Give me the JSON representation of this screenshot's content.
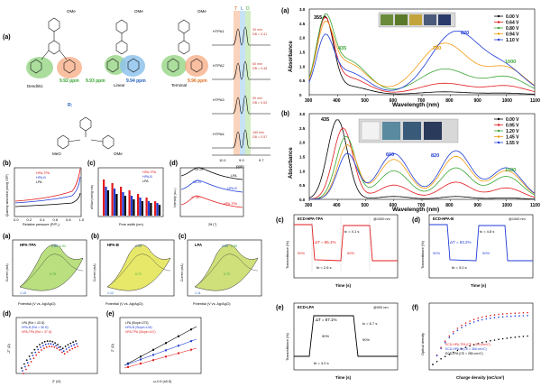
{
  "left": {
    "a_top": {
      "panel": "(a)",
      "ome": "OMe",
      "groups": [
        "Dendritic",
        "Linear",
        "Terminal"
      ],
      "ppm": [
        "9.92 ppm",
        "9.93 ppm",
        "9.94 ppm",
        "9.96 ppm"
      ],
      "r_label": "R:",
      "meo": "MeO",
      "nmr_header": [
        "T",
        "L",
        "D"
      ],
      "nmr_rows": [
        {
          "name": "HTPA1",
          "info": [
            "30 min",
            "DB = 0.41"
          ]
        },
        {
          "name": "HTPA2",
          "info": [
            "60 min",
            "DB = 0.48"
          ]
        },
        {
          "name": "HTPA3",
          "info": [
            "90 min",
            "DB = 0.53"
          ]
        },
        {
          "name": "HTPA4",
          "info": [
            "180 min",
            "DB = 0.57"
          ]
        }
      ],
      "nmr_ticks": [
        "10.1",
        "9.9",
        "9.7"
      ],
      "nmr_xlabel": "ppm"
    },
    "b": {
      "panel": "(b)",
      "legend": [
        "HPA-TPA",
        "HPA-B",
        "LPA"
      ],
      "xlabel": "Relative pressure (P/P₀)",
      "ylabel": "Quantity adsorbed (cm³/g STP)",
      "ticks": [
        "0.0",
        "0.2",
        "0.4",
        "0.6",
        "0.8",
        "1.0"
      ]
    },
    "c": {
      "panel": "(c)",
      "legend": [
        "HPA-TPA",
        "HPA-B",
        "LPA"
      ],
      "xlabel": "Pore width (nm)",
      "ylabel": "dV/dw (cm³/g·nm)"
    },
    "d": {
      "panel": "(d)",
      "labels": [
        "LPA",
        "HPA-B",
        "HPA-TPA"
      ],
      "xlabel": "2θ (°)",
      "ylabel": "Intensity (a.u.)",
      "peaks": [
        "19.19°",
        "18.25°",
        "17.06°"
      ]
    },
    "cv": [
      {
        "panel": "(a)",
        "title": "HPA-TPA",
        "vals": [
          "0.80",
          "0.92",
          "0.73",
          "1.15"
        ],
        "xlabel": "Potential (V vs. Ag/AgCl)"
      },
      {
        "panel": "(b)",
        "title": "HPA-B",
        "vals": [
          "0.90",
          "0.71",
          "1.12"
        ],
        "xlabel": "Potential (V vs. Ag/AgCl)"
      },
      {
        "panel": "(c)",
        "title": "LPA",
        "vals": [
          "0.81",
          "0.95",
          "0.72",
          "1.11"
        ],
        "xlabel": "Potential (V vs. Ag/AgCl)"
      }
    ],
    "cv_ylabel": "Current (mA)",
    "dd": {
      "panel": "(d)",
      "legend": [
        "LPA (Rct = 43 Ω)",
        "HPA-B (Rct = 36 Ω)",
        "HPA-TPA (Rct = 37 Ω)"
      ],
      "xlabel": "Z' (Ω)",
      "ylabel": "-Z'' (Ω)"
    },
    "ee": {
      "panel": "(e)",
      "legend": [
        "LPA (Slope=273)",
        "HPA-B (Slope=104)",
        "HPA-TPA (Slope=147)"
      ],
      "xlabel": "ω-0.5 (s0.5)",
      "ylabel": "Z' (Ω)"
    }
  },
  "right": {
    "a": {
      "panel": "(a)",
      "legend": [
        "0.00 V",
        "0.64 V",
        "0.80 V",
        "0.94 V",
        "1.10 V"
      ],
      "peaks": [
        "355",
        "435",
        "780",
        "820",
        "1000"
      ],
      "xlabel": "Wavelength (nm)",
      "ylabel": "Absorbance",
      "xticks": [
        "300",
        "400",
        "500",
        "600",
        "700",
        "800",
        "900",
        "1000",
        "1100"
      ],
      "yticks": [
        "0",
        "0.5",
        "1.0",
        "1.5",
        "2.0",
        "2.5",
        "3.0"
      ]
    },
    "b": {
      "panel": "(b)",
      "legend": [
        "0.00 V",
        "0.95 V",
        "1.20 V",
        "1.45 V",
        "1.55 V"
      ],
      "peaks": [
        "435",
        "600",
        "820",
        "1000"
      ],
      "xlabel": "Wavelength (nm)",
      "ylabel": "Absorbance",
      "xticks": [
        "300",
        "400",
        "500",
        "600",
        "700",
        "800",
        "900",
        "1000",
        "1100"
      ],
      "yticks": [
        "0.0",
        "0.5",
        "1.0",
        "1.5",
        "2.0",
        "2.5",
        "3.0"
      ]
    },
    "c": {
      "panel": "(c)",
      "title": "ECD-HPA-TPA",
      "note": "@1000 nm",
      "dT": "ΔT = 85.1%",
      "tc": "tc = 4.1 s",
      "tb": "tb = 2.6 s",
      "p1": "90%",
      "p2": "90%",
      "xlabel": "Time (s)",
      "ylabel": "Transmittance (%)"
    },
    "d": {
      "panel": "(d)",
      "title": "ECD-HPA-B",
      "note": "@1000 nm",
      "dT": "ΔT = 83.2%",
      "tc": "tc = 4.8 s",
      "tb": "tb = 3.0 s",
      "p1": "90%",
      "p2": "90%",
      "xlabel": "Time (s)",
      "ylabel": "Transmittance (%)"
    },
    "e": {
      "panel": "(e)",
      "title": "ECD-LPA",
      "note": "@900 nm",
      "dT": "ΔT = 87.1%",
      "tc": "tc = 6.7 s",
      "tb": "tb = 4.0 s",
      "p1": "90%",
      "p2": "90%",
      "xlabel": "Time (s)",
      "ylabel": "Transmittance (%)"
    },
    "f": {
      "panel": "(f)",
      "legend": [
        "ECD-HPA-TPA (CE = 370 cm²/C)",
        "ECD-HPA-B (CE = 366 cm²/C)",
        "ECD-LPA (CE = 286 cm²/C)"
      ],
      "xlabel": "Charge density (mC/cm²)",
      "ylabel": "Optical density"
    }
  },
  "colors": {
    "red": "#e31a1c",
    "blue": "#1f3bd6",
    "black": "#000000",
    "green": "#3aa535",
    "orange": "#f39c12",
    "gray": "#777777"
  }
}
